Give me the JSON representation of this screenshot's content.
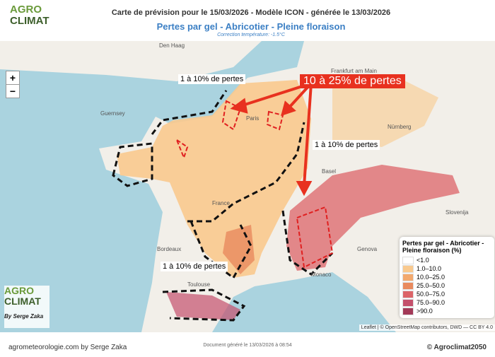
{
  "header": {
    "logo_top": "AGRO",
    "logo_bottom": "CLIMAT",
    "title": "Carte de prévision pour le 15/03/2026 - Modèle ICON - générée le 13/03/2026",
    "subtitle": "Pertes par gel - Abricotier - Pleine floraison",
    "note": "Correction température: -1.5°C"
  },
  "map": {
    "zoom_in": "+",
    "zoom_out": "−",
    "places": [
      {
        "label": "Den Haag"
      },
      {
        "label": "Frankfurt am Main"
      },
      {
        "label": "Nürnberg"
      },
      {
        "label": "Guernsey"
      },
      {
        "label": "Paris"
      },
      {
        "label": "France"
      },
      {
        "label": "Basel"
      },
      {
        "label": "Bordeaux"
      },
      {
        "label": "Toulouse"
      },
      {
        "label": "Monaco"
      },
      {
        "label": "Slovenija"
      },
      {
        "label": "Genova"
      }
    ],
    "annotations": [
      {
        "label": "1 à 10% de pertes"
      },
      {
        "label": "10 à 25% de pertes"
      },
      {
        "label": "1 à 10% de pertes"
      },
      {
        "label": "1 à 10% de pertes"
      }
    ],
    "legend": {
      "title": "Pertes par gel - Abricotier - Pleine floraison (%)",
      "items": [
        {
          "label": "<1.0",
          "color": "#ffffff"
        },
        {
          "label": "1.0–10.0",
          "color": "#f9c98e"
        },
        {
          "label": "10.0–25.0",
          "color": "#f3a96e"
        },
        {
          "label": "25.0–50.0",
          "color": "#e98a5e"
        },
        {
          "label": "50.0–75.0",
          "color": "#dc6468"
        },
        {
          "label": "75.0–90.0",
          "color": "#c4506c"
        },
        {
          "label": ">90.0",
          "color": "#a33a58"
        }
      ]
    },
    "attribution": "Leaflet | © OpenStreetMap contributors, DWD — CC BY 4.0",
    "badge": {
      "logo_top": "AGRO",
      "logo_bottom": "CLIMAT",
      "byline": "By Serge Zaka"
    }
  },
  "footer": {
    "left": "agrometeorologie.com by Serge Zaka",
    "center": "Document généré le 13/03/2026 à 08:54",
    "right": "© Agroclimat2050"
  }
}
